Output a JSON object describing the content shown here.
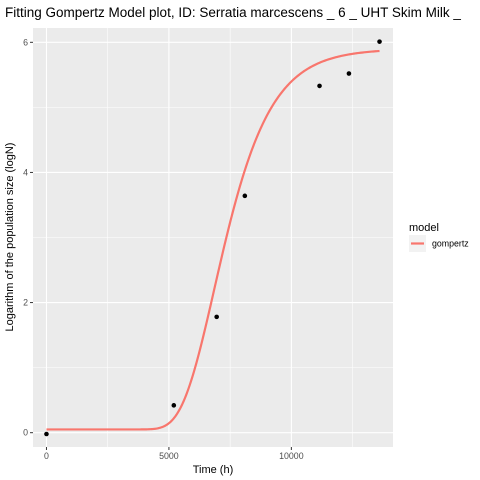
{
  "chart_data": {
    "type": "line",
    "title": "Fitting Gompertz Model plot, ID: Serratia marcescens _ 6 _ UHT Skim Milk _",
    "xlabel": "Time (h)",
    "ylabel": "Logarithm of the population size (logN)",
    "xlim": [
      -550,
      14150
    ],
    "ylim": [
      -0.22,
      6.22
    ],
    "x_ticks": [
      0,
      5000,
      10000
    ],
    "x_tick_labels": [
      "0",
      "5000",
      "10000"
    ],
    "y_ticks": [
      0,
      2,
      4,
      6
    ],
    "y_tick_labels": [
      "0",
      "2",
      "4",
      "6"
    ],
    "grid": true,
    "legend": {
      "title": "model",
      "position": "right",
      "entries": [
        {
          "label": "gompertz",
          "color": "#F8766D"
        }
      ]
    },
    "points": {
      "x": [
        0,
        5200,
        6950,
        8100,
        11150,
        12350,
        13600
      ],
      "y": [
        -0.02,
        0.42,
        1.78,
        3.64,
        5.33,
        5.52,
        6.01
      ]
    },
    "series": [
      {
        "name": "gompertz",
        "color": "#F8766D",
        "model": {
          "A": 0.05,
          "C": 5.85,
          "B": 0.000765,
          "M": 6850
        },
        "x_range": [
          0,
          13600
        ]
      }
    ]
  }
}
